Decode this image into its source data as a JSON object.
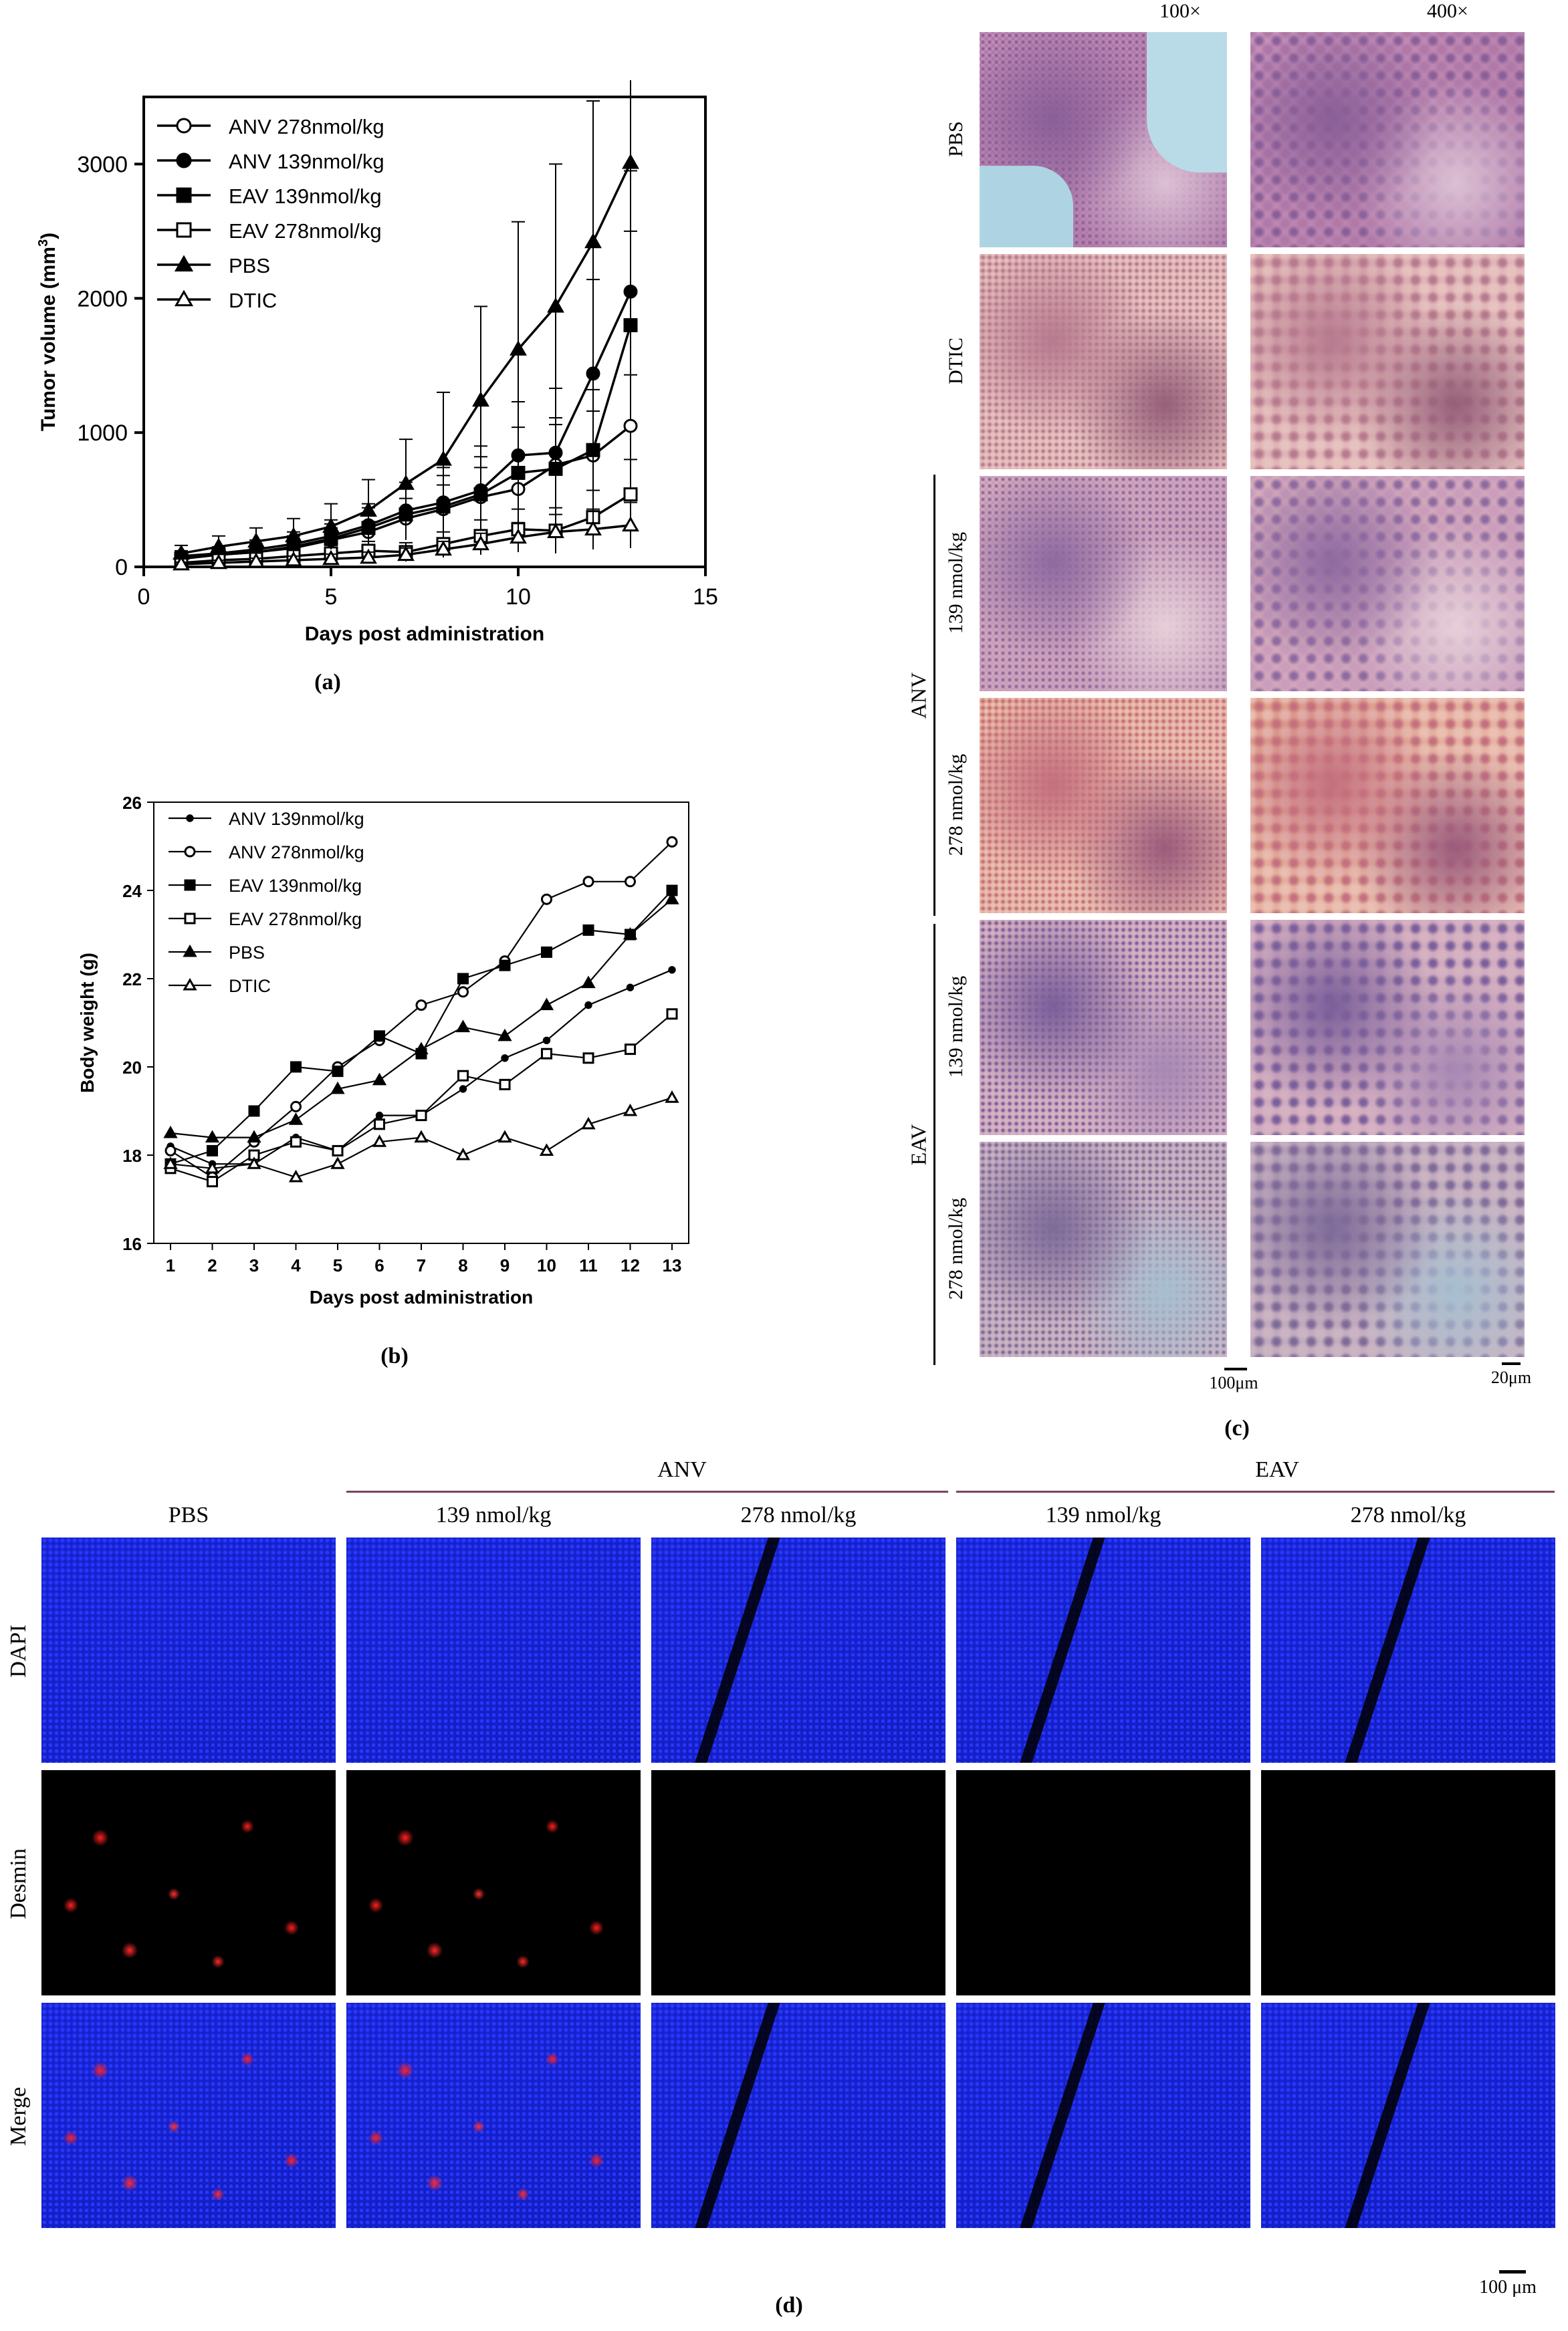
{
  "panels": {
    "a": {
      "caption": "(a)",
      "chart_data": {
        "type": "line",
        "xlabel": "Days post administration",
        "ylabel_main": "Tumor volume (mm",
        "ylabel_sup": "3",
        "ylabel_close": ")",
        "xlim": [
          0,
          15
        ],
        "ylim": [
          0,
          3500
        ],
        "xticks": [
          0,
          5,
          10,
          15
        ],
        "yticks": [
          0,
          1000,
          2000,
          3000
        ],
        "legend_position": "top-left",
        "series": [
          {
            "name": "ANV 278nmol/kg",
            "marker": "circle-open",
            "x": [
              1,
              2,
              3,
              4,
              5,
              6,
              7,
              8,
              9,
              10,
              11,
              12,
              13
            ],
            "y": [
              70,
              90,
              110,
              140,
              200,
              260,
              360,
              430,
              520,
              580,
              760,
              830,
              1050
            ],
            "err": [
              40,
              50,
              60,
              70,
              90,
              120,
              150,
              180,
              220,
              260,
              300,
              330,
              380
            ]
          },
          {
            "name": "ANV 139nmol/kg",
            "marker": "circle-filled",
            "x": [
              1,
              2,
              3,
              4,
              5,
              6,
              7,
              8,
              9,
              10,
              11,
              12,
              13
            ],
            "y": [
              80,
              100,
              130,
              170,
              230,
              310,
              420,
              480,
              570,
              830,
              850,
              1440,
              2050
            ],
            "err": [
              40,
              50,
              70,
              90,
              120,
              160,
              210,
              260,
              330,
              400,
              480,
              700,
              900
            ]
          },
          {
            "name": "EAV 139nmol/kg",
            "marker": "square-filled",
            "x": [
              1,
              2,
              3,
              4,
              5,
              6,
              7,
              8,
              9,
              10,
              11,
              12,
              13
            ],
            "y": [
              60,
              90,
              110,
              150,
              210,
              290,
              390,
              450,
              540,
              700,
              730,
              870,
              1800
            ],
            "err": [
              30,
              50,
              60,
              80,
              110,
              150,
              190,
              230,
              280,
              340,
              380,
              450,
              700
            ]
          },
          {
            "name": "EAV 278nmol/kg",
            "marker": "square-open",
            "x": [
              1,
              2,
              3,
              4,
              5,
              6,
              7,
              8,
              9,
              10,
              11,
              12,
              13
            ],
            "y": [
              30,
              50,
              60,
              80,
              100,
              120,
              110,
              170,
              230,
              280,
              270,
              370,
              540
            ],
            "err": [
              20,
              30,
              40,
              50,
              60,
              70,
              70,
              90,
              120,
              150,
              170,
              200,
              260
            ]
          },
          {
            "name": "PBS",
            "marker": "triangle-filled",
            "x": [
              1,
              2,
              3,
              4,
              5,
              6,
              7,
              8,
              9,
              10,
              11,
              12,
              13
            ],
            "y": [
              100,
              150,
              190,
              230,
              300,
              420,
              620,
              800,
              1240,
              1620,
              1940,
              2420,
              3010
            ],
            "err": [
              60,
              80,
              100,
              130,
              170,
              230,
              330,
              500,
              700,
              950,
              1060,
              1050,
              870
            ]
          },
          {
            "name": "DTIC",
            "marker": "triangle-open",
            "x": [
              1,
              2,
              3,
              4,
              5,
              6,
              7,
              8,
              9,
              10,
              11,
              12,
              13
            ],
            "y": [
              20,
              30,
              40,
              50,
              60,
              70,
              90,
              130,
              170,
              220,
              260,
              280,
              310
            ],
            "err": [
              15,
              20,
              25,
              30,
              35,
              40,
              50,
              60,
              80,
              110,
              130,
              150,
              170
            ]
          }
        ]
      }
    },
    "b": {
      "caption": "(b)",
      "chart_data": {
        "type": "line",
        "xlabel": "Days post administration",
        "ylabel": "Body weight  (g)",
        "xlim": [
          0.6,
          13.4
        ],
        "ylim": [
          16,
          26
        ],
        "xticks": [
          1,
          2,
          3,
          4,
          5,
          6,
          7,
          8,
          9,
          10,
          11,
          12,
          13
        ],
        "yticks": [
          16,
          18,
          20,
          22,
          24,
          26
        ],
        "legend_position": "top-left",
        "series": [
          {
            "name": "ANV 139nmol/kg",
            "marker": "dot-filled",
            "x": [
              1,
              2,
              3,
              4,
              5,
              6,
              7,
              8,
              9,
              10,
              11,
              12,
              13
            ],
            "y": [
              18.2,
              17.8,
              17.8,
              18.4,
              18.1,
              18.9,
              18.9,
              19.5,
              20.2,
              20.6,
              21.4,
              21.8,
              22.2
            ]
          },
          {
            "name": "ANV 278nmol/kg",
            "marker": "circle-open",
            "x": [
              1,
              2,
              3,
              4,
              5,
              6,
              7,
              8,
              9,
              10,
              11,
              12,
              13
            ],
            "y": [
              18.1,
              17.5,
              18.3,
              19.1,
              20.0,
              20.6,
              21.4,
              21.7,
              22.4,
              23.8,
              24.2,
              24.2,
              25.1
            ]
          },
          {
            "name": "EAV 139nmol/kg",
            "marker": "square-filled",
            "x": [
              1,
              2,
              3,
              4,
              5,
              6,
              7,
              8,
              9,
              10,
              11,
              12,
              13
            ],
            "y": [
              17.8,
              18.1,
              19.0,
              20.0,
              19.9,
              20.7,
              20.3,
              22.0,
              22.3,
              22.6,
              23.1,
              23.0,
              24.0
            ]
          },
          {
            "name": "EAV 278nmol/kg",
            "marker": "square-open",
            "x": [
              1,
              2,
              3,
              4,
              5,
              6,
              7,
              8,
              9,
              10,
              11,
              12,
              13
            ],
            "y": [
              17.7,
              17.4,
              18.0,
              18.3,
              18.1,
              18.7,
              18.9,
              19.8,
              19.6,
              20.3,
              20.2,
              20.4,
              21.2
            ]
          },
          {
            "name": "PBS",
            "marker": "triangle-filled",
            "x": [
              1,
              2,
              3,
              4,
              5,
              6,
              7,
              8,
              9,
              10,
              11,
              12,
              13
            ],
            "y": [
              18.5,
              18.4,
              18.4,
              18.8,
              19.5,
              19.7,
              20.4,
              20.9,
              20.7,
              21.4,
              21.9,
              23.0,
              23.8
            ]
          },
          {
            "name": "DTIC",
            "marker": "triangle-open",
            "x": [
              1,
              2,
              3,
              4,
              5,
              6,
              7,
              8,
              9,
              10,
              11,
              12,
              13
            ],
            "y": [
              17.8,
              17.7,
              17.8,
              17.5,
              17.8,
              18.3,
              18.4,
              18.0,
              18.4,
              18.1,
              18.7,
              19.0,
              19.3
            ]
          }
        ]
      }
    },
    "c": {
      "caption": "(c)",
      "col_headers": [
        "100×",
        "400×"
      ],
      "row_labels": [
        "PBS",
        "DTIC",
        "139 nmol/kg",
        "278 nmol/kg",
        "139 nmol/kg",
        "278 nmol/kg"
      ],
      "group_labels": [
        "ANV",
        "EAV"
      ],
      "scale_bars": [
        "100μm",
        "20μm"
      ]
    },
    "d": {
      "caption": "(d)",
      "group_labels": [
        "ANV",
        "EAV"
      ],
      "col_headers": [
        "PBS",
        "139 nmol/kg",
        "278 nmol/kg",
        "139 nmol/kg",
        "278 nmol/kg"
      ],
      "row_labels": [
        "DAPI",
        "Desmin",
        "Merge"
      ],
      "scale_bar": "100 μm"
    }
  },
  "colors": {
    "line": "#000000",
    "he_pink": "#d9a3b8",
    "he_purple": "#8a5f98",
    "he_orange": "#e3a08c",
    "he_blue": "#aad3e3",
    "dapi_blue": "#1622e0",
    "desmin_red": "#ff1f1f",
    "group_line": "#7a4460"
  }
}
